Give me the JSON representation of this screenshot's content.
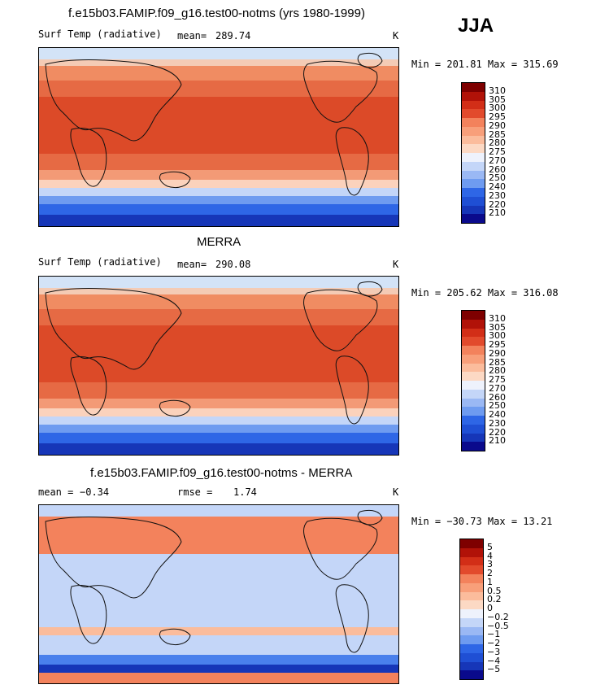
{
  "season": "JJA",
  "colors": {
    "temp_scale": [
      "#0a0a8c",
      "#1636b8",
      "#1f4fd4",
      "#2e66e6",
      "#4a80ec",
      "#6e9bf0",
      "#9ab8f4",
      "#c4d6f8",
      "#eef2fc",
      "#fcd9c4",
      "#fbbc9c",
      "#f89f7a",
      "#f3825c",
      "#ec6642",
      "#e24a2c",
      "#d22e17",
      "#b11208",
      "#7e0000"
    ],
    "diff_scale": [
      "#0a0a8c",
      "#1636b8",
      "#1f4fd4",
      "#2e66e6",
      "#4a80ec",
      "#6e9bf0",
      "#9ab8f4",
      "#c4d6f8",
      "#eef2fc",
      "#fcd9c4",
      "#fbbc9c",
      "#f89f7a",
      "#f3825c",
      "#ec6642",
      "#e24a2c",
      "#d22e17",
      "#b11208",
      "#7e0000"
    ]
  },
  "chart_data": [
    {
      "type": "heatmap",
      "title": "f.e15b03.FAMIP.f09_g16.test00-notms (yrs 1980-1999)",
      "variable": "Surf Temp (radiative)",
      "mean_label": "mean=",
      "mean": "289.74",
      "units": "K",
      "min_max_text": "Min = 201.81 Max = 315.69",
      "min": 201.81,
      "max": 315.69,
      "colorbar_levels": [
        "310",
        "305",
        "300",
        "295",
        "290",
        "285",
        "280",
        "275",
        "270",
        "260",
        "250",
        "240",
        "230",
        "220",
        "210"
      ]
    },
    {
      "type": "heatmap",
      "title": "MERRA",
      "variable": "Surf Temp (radiative)",
      "mean_label": "mean=",
      "mean": "290.08",
      "units": "K",
      "min_max_text": "Min = 205.62 Max = 316.08",
      "min": 205.62,
      "max": 316.08,
      "colorbar_levels": [
        "310",
        "305",
        "300",
        "295",
        "290",
        "285",
        "280",
        "275",
        "270",
        "260",
        "250",
        "240",
        "230",
        "220",
        "210"
      ]
    },
    {
      "type": "heatmap",
      "title": "f.e15b03.FAMIP.f09_g16.test00-notms - MERRA",
      "mean_label": "mean =",
      "mean": "−0.34",
      "rmse_label": "rmse =",
      "rmse": "1.74",
      "units": "K",
      "min_max_text": "Min = −30.73 Max =  13.21",
      "min": -30.73,
      "max": 13.21,
      "colorbar_levels": [
        "5",
        "4",
        "3",
        "2",
        "1",
        "0.5",
        "0.2",
        "0",
        "−0.2",
        "−0.5",
        "−1",
        "−2",
        "−3",
        "−4",
        "−5"
      ]
    }
  ]
}
